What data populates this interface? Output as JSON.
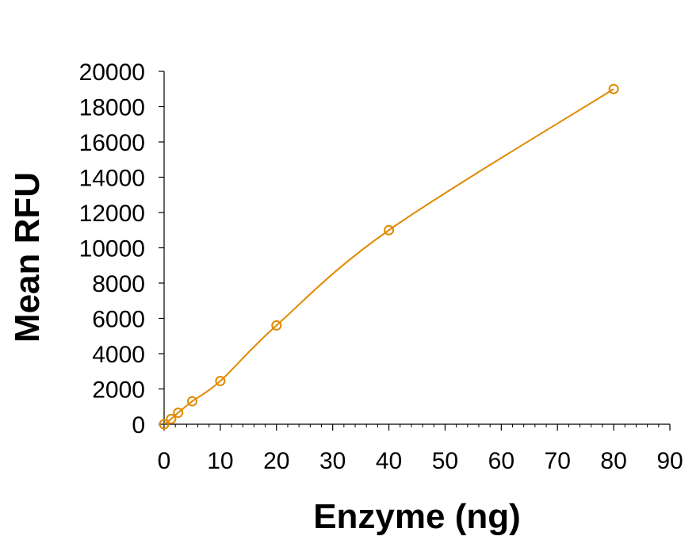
{
  "chart_data": {
    "type": "scatter",
    "xlabel": "Enzyme (ng)",
    "ylabel": "Mean RFU",
    "xlim": [
      0,
      90
    ],
    "ylim": [
      0,
      20000
    ],
    "x_ticks": [
      0,
      10,
      20,
      30,
      40,
      50,
      60,
      70,
      80,
      90
    ],
    "y_ticks": [
      0,
      2000,
      4000,
      6000,
      8000,
      10000,
      12000,
      14000,
      16000,
      18000,
      20000
    ],
    "x_tick_labels": [
      "0",
      "10",
      "20",
      "30",
      "40",
      "50",
      "60",
      "70",
      "80",
      "90"
    ],
    "y_tick_labels": [
      "0",
      "2000",
      "4000",
      "6000",
      "8000",
      "10000",
      "12000",
      "14000",
      "16000",
      "18000",
      "20000"
    ],
    "grid": false,
    "legend": "none",
    "series": [
      {
        "color": "#E08A00",
        "marker": "open-circle",
        "trend_line": "smooth curve fit",
        "x": [
          0,
          1.25,
          2.5,
          5,
          10,
          20,
          40,
          80
        ],
        "y": [
          0,
          300,
          650,
          1300,
          2450,
          5600,
          11000,
          19000
        ]
      }
    ]
  }
}
